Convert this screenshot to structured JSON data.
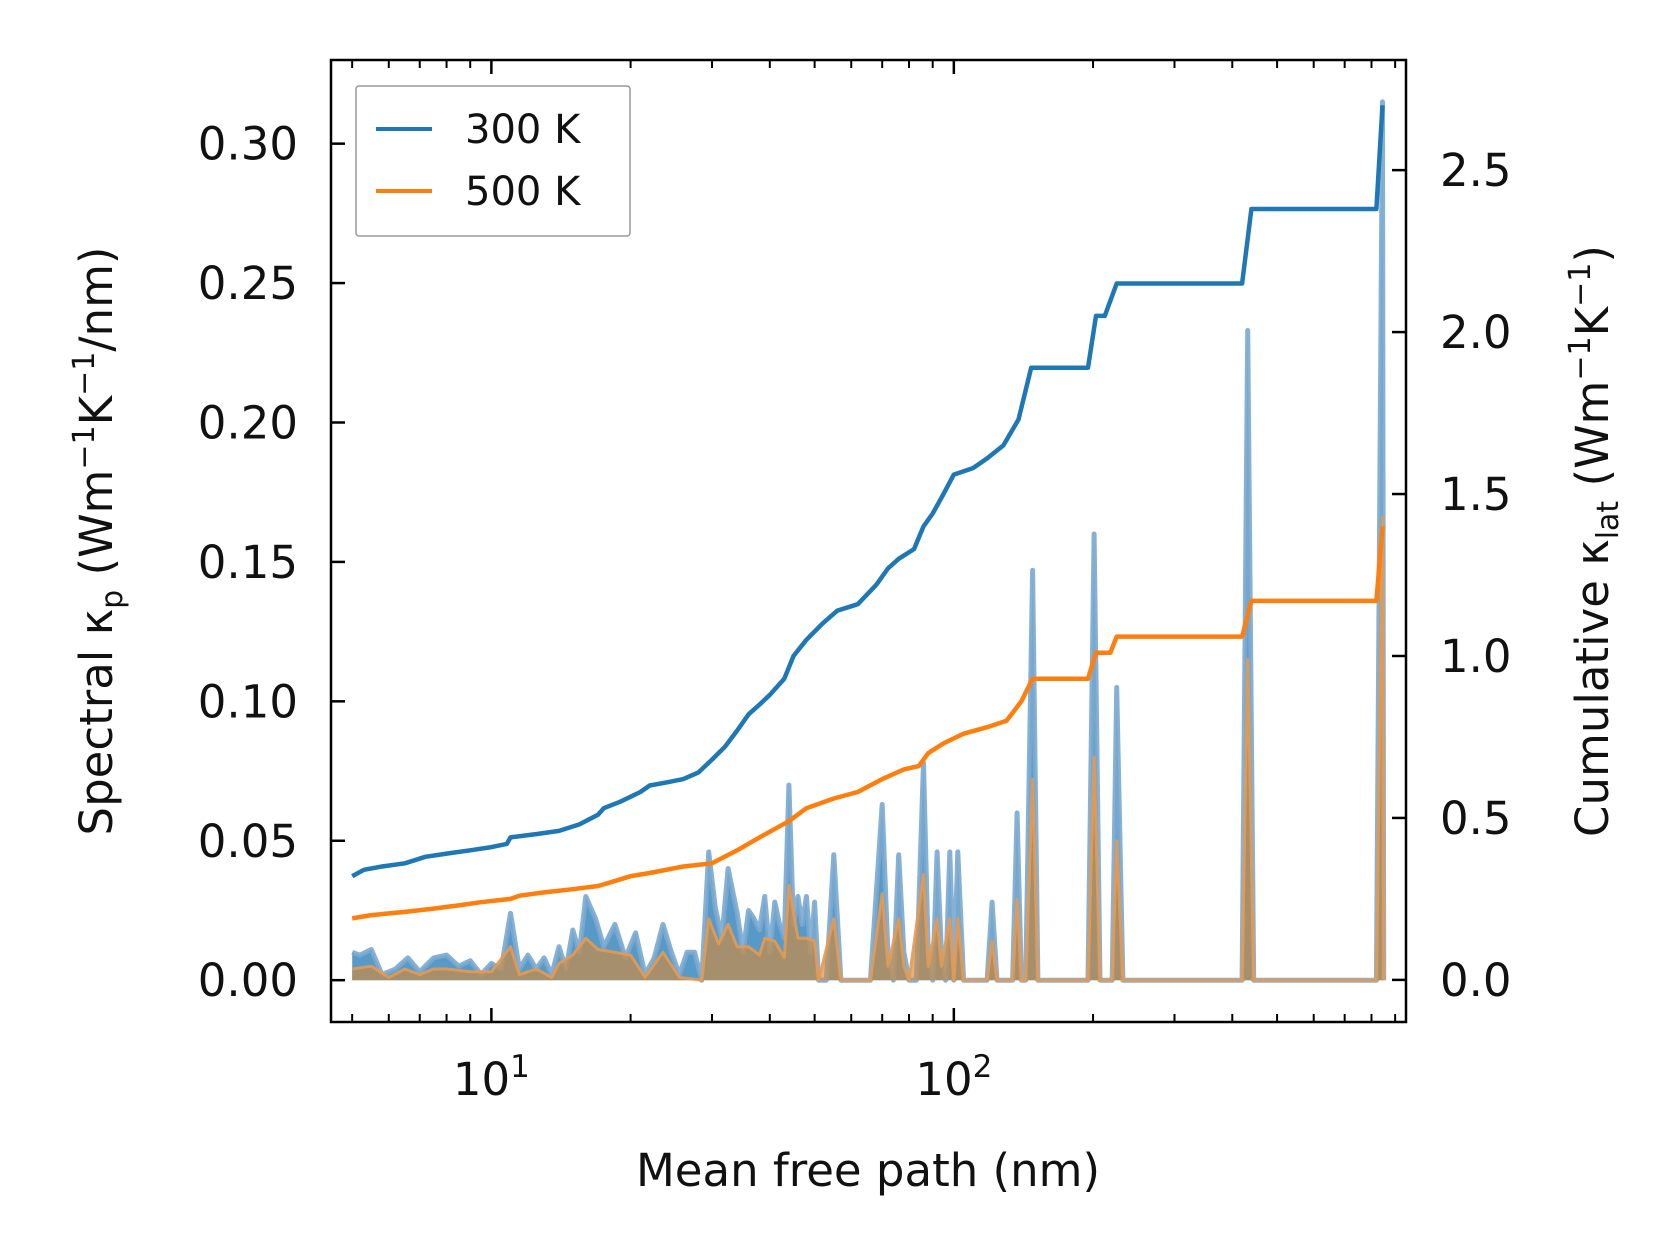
{
  "chart_data": {
    "type": "line",
    "xscale": "log",
    "xlabel": "Mean free path (nm)",
    "ylabel_left": {
      "main": "Spectral ",
      "kappa": "κ",
      "sub": "p",
      "unit_prefix": " (Wm",
      "exp1": "−1",
      "mid": "K",
      "exp2": "−1",
      "unit_suffix": "/nm)"
    },
    "ylabel_right": {
      "main": "Cumulative ",
      "kappa": "κ",
      "sub": "lat",
      "unit_prefix": " (Wm",
      "exp1": "−1",
      "mid": "K",
      "exp2": "−1",
      "unit_suffix": ")"
    },
    "xlim": [
      4.5,
      950
    ],
    "ylim_left": [
      -0.015,
      0.33
    ],
    "ylim_right": [
      -0.13,
      2.84
    ],
    "x_ticks": [
      {
        "value": 10,
        "base": "10",
        "exp": "1"
      },
      {
        "value": 100,
        "base": "10",
        "exp": "2"
      }
    ],
    "y_ticks_left": [
      "0.00",
      "0.05",
      "0.10",
      "0.15",
      "0.20",
      "0.25",
      "0.30"
    ],
    "y_ticks_right": [
      "0.0",
      "0.5",
      "1.0",
      "1.5",
      "2.0",
      "2.5"
    ],
    "legend": {
      "position": "top-left",
      "entries": [
        "300 K",
        "500 K"
      ]
    },
    "colors": {
      "300K": "#1f77b4",
      "500K": "#ff7f0e",
      "fill300": "#1f77b4",
      "fill500": "#d08a3e"
    },
    "series": [
      {
        "name": "300 K",
        "axis": "right",
        "kind": "cumulative",
        "points": [
          [
            5.0,
            0.32
          ],
          [
            5.3,
            0.34
          ],
          [
            5.8,
            0.35
          ],
          [
            6.5,
            0.36
          ],
          [
            7.2,
            0.38
          ],
          [
            8.0,
            0.39
          ],
          [
            9.0,
            0.4
          ],
          [
            10.0,
            0.41
          ],
          [
            10.8,
            0.42
          ],
          [
            11.0,
            0.44
          ],
          [
            12.5,
            0.45
          ],
          [
            14.0,
            0.46
          ],
          [
            15.5,
            0.48
          ],
          [
            17.0,
            0.51
          ],
          [
            17.5,
            0.53
          ],
          [
            19.0,
            0.55
          ],
          [
            21.0,
            0.58
          ],
          [
            22.0,
            0.6
          ],
          [
            24.0,
            0.61
          ],
          [
            26.0,
            0.62
          ],
          [
            28.0,
            0.64
          ],
          [
            30.0,
            0.68
          ],
          [
            32.0,
            0.72
          ],
          [
            34.0,
            0.77
          ],
          [
            36.0,
            0.82
          ],
          [
            38.0,
            0.85
          ],
          [
            40.0,
            0.88
          ],
          [
            43.0,
            0.93
          ],
          [
            45.0,
            1.0
          ],
          [
            48.0,
            1.05
          ],
          [
            52.0,
            1.1
          ],
          [
            56.0,
            1.14
          ],
          [
            62.0,
            1.16
          ],
          [
            68.0,
            1.22
          ],
          [
            72.0,
            1.27
          ],
          [
            76.0,
            1.3
          ],
          [
            82.0,
            1.33
          ],
          [
            86.0,
            1.4
          ],
          [
            90.0,
            1.44
          ],
          [
            95.0,
            1.5
          ],
          [
            100.0,
            1.56
          ],
          [
            110.0,
            1.58
          ],
          [
            118.0,
            1.61
          ],
          [
            128.0,
            1.65
          ],
          [
            138.0,
            1.73
          ],
          [
            147.0,
            1.89
          ],
          [
            150.0,
            1.89
          ],
          [
            195.0,
            1.89
          ],
          [
            203.0,
            2.05
          ],
          [
            212.0,
            2.05
          ],
          [
            225.0,
            2.15
          ],
          [
            420.0,
            2.15
          ],
          [
            440.0,
            2.38
          ],
          [
            820.0,
            2.38
          ],
          [
            845.0,
            2.7
          ]
        ]
      },
      {
        "name": "500 K",
        "axis": "right",
        "kind": "cumulative",
        "points": [
          [
            5.0,
            0.19
          ],
          [
            5.5,
            0.2
          ],
          [
            6.5,
            0.21
          ],
          [
            7.5,
            0.22
          ],
          [
            8.5,
            0.23
          ],
          [
            9.5,
            0.24
          ],
          [
            11.0,
            0.25
          ],
          [
            11.5,
            0.26
          ],
          [
            13.0,
            0.27
          ],
          [
            15.0,
            0.28
          ],
          [
            17.0,
            0.29
          ],
          [
            18.0,
            0.3
          ],
          [
            20.0,
            0.32
          ],
          [
            22.0,
            0.33
          ],
          [
            26.0,
            0.35
          ],
          [
            30.0,
            0.36
          ],
          [
            34.0,
            0.4
          ],
          [
            38.0,
            0.44
          ],
          [
            44.0,
            0.49
          ],
          [
            48.0,
            0.53
          ],
          [
            55.0,
            0.56
          ],
          [
            62.0,
            0.58
          ],
          [
            70.0,
            0.62
          ],
          [
            78.0,
            0.65
          ],
          [
            84.0,
            0.66
          ],
          [
            88.0,
            0.7
          ],
          [
            95.0,
            0.73
          ],
          [
            105.0,
            0.76
          ],
          [
            118.0,
            0.78
          ],
          [
            130.0,
            0.8
          ],
          [
            140.0,
            0.86
          ],
          [
            148.0,
            0.93
          ],
          [
            195.0,
            0.93
          ],
          [
            203.0,
            1.01
          ],
          [
            218.0,
            1.01
          ],
          [
            225.0,
            1.06
          ],
          [
            420.0,
            1.06
          ],
          [
            440.0,
            1.17
          ],
          [
            820.0,
            1.17
          ],
          [
            845.0,
            1.4
          ]
        ]
      },
      {
        "name": "300 K",
        "axis": "left",
        "kind": "spectral",
        "points": [
          [
            5.0,
            0.01
          ],
          [
            5.2,
            0.009
          ],
          [
            5.5,
            0.011
          ],
          [
            5.8,
            0.002
          ],
          [
            6.2,
            0.004
          ],
          [
            6.6,
            0.008
          ],
          [
            7.0,
            0.003
          ],
          [
            7.5,
            0.008
          ],
          [
            8.0,
            0.009
          ],
          [
            8.5,
            0.005
          ],
          [
            9.0,
            0.007
          ],
          [
            9.5,
            0.002
          ],
          [
            10.0,
            0.006
          ],
          [
            10.5,
            0.004
          ],
          [
            11.0,
            0.024
          ],
          [
            11.5,
            0.004
          ],
          [
            12.0,
            0.009
          ],
          [
            12.5,
            0.004
          ],
          [
            13.0,
            0.008
          ],
          [
            13.5,
            0.002
          ],
          [
            14.0,
            0.012
          ],
          [
            14.5,
            0.004
          ],
          [
            15.0,
            0.018
          ],
          [
            15.5,
            0.01
          ],
          [
            16.0,
            0.03
          ],
          [
            16.8,
            0.022
          ],
          [
            17.5,
            0.012
          ],
          [
            18.5,
            0.02
          ],
          [
            19.5,
            0.008
          ],
          [
            20.5,
            0.017
          ],
          [
            21.5,
            0.002
          ],
          [
            22.5,
            0.008
          ],
          [
            23.5,
            0.02
          ],
          [
            24.5,
            0.01
          ],
          [
            25.5,
            0.002
          ],
          [
            26.5,
            0.01
          ],
          [
            27.5,
            0.01
          ],
          [
            28.5,
            0.0
          ],
          [
            29.5,
            0.046
          ],
          [
            30.5,
            0.026
          ],
          [
            31.5,
            0.015
          ],
          [
            32.5,
            0.04
          ],
          [
            34.0,
            0.024
          ],
          [
            35.0,
            0.01
          ],
          [
            36.0,
            0.025
          ],
          [
            37.0,
            0.022
          ],
          [
            38.0,
            0.018
          ],
          [
            39.0,
            0.03
          ],
          [
            40.0,
            0.01
          ],
          [
            41.0,
            0.028
          ],
          [
            42.0,
            0.02
          ],
          [
            43.0,
            0.015
          ],
          [
            44.0,
            0.07
          ],
          [
            45.0,
            0.02
          ],
          [
            46.0,
            0.03
          ],
          [
            47.0,
            0.02
          ],
          [
            48.0,
            0.03
          ],
          [
            49.0,
            0.01
          ],
          [
            50.0,
            0.028
          ],
          [
            51.0,
            0.0
          ],
          [
            53.0,
            0.0
          ],
          [
            55.0,
            0.045
          ],
          [
            57.0,
            0.0
          ],
          [
            60.0,
            0.0
          ],
          [
            63.0,
            0.0
          ],
          [
            66.0,
            0.0
          ],
          [
            70.0,
            0.063
          ],
          [
            72.0,
            0.01
          ],
          [
            74.0,
            0.0
          ],
          [
            76.0,
            0.045
          ],
          [
            78.0,
            0.01
          ],
          [
            80.0,
            0.0
          ],
          [
            83.0,
            0.0
          ],
          [
            86.0,
            0.078
          ],
          [
            88.0,
            0.01
          ],
          [
            90.0,
            0.0
          ],
          [
            92.0,
            0.046
          ],
          [
            94.0,
            0.01
          ],
          [
            96.0,
            0.0
          ],
          [
            98.0,
            0.046
          ],
          [
            100.0,
            0.0
          ],
          [
            102.0,
            0.046
          ],
          [
            105.0,
            0.0
          ],
          [
            118.0,
            0.0
          ],
          [
            121.0,
            0.028
          ],
          [
            124.0,
            0.0
          ],
          [
            134.0,
            0.0
          ],
          [
            137.0,
            0.06
          ],
          [
            140.0,
            0.0
          ],
          [
            143.0,
            0.0
          ],
          [
            148.0,
            0.147
          ],
          [
            152.0,
            0.0
          ],
          [
            195.0,
            0.0
          ],
          [
            201.0,
            0.16
          ],
          [
            207.0,
            0.0
          ],
          [
            220.0,
            0.0
          ],
          [
            225.0,
            0.105
          ],
          [
            232.0,
            0.0
          ],
          [
            420.0,
            0.0
          ],
          [
            432.0,
            0.233
          ],
          [
            445.0,
            0.0
          ],
          [
            820.0,
            0.0
          ],
          [
            845.0,
            0.315
          ],
          [
            850.0,
            0.0
          ]
        ]
      },
      {
        "name": "500 K",
        "axis": "left",
        "kind": "spectral",
        "points": [
          [
            5.0,
            0.004
          ],
          [
            5.5,
            0.005
          ],
          [
            6.0,
            0.001
          ],
          [
            6.5,
            0.004
          ],
          [
            7.0,
            0.002
          ],
          [
            7.5,
            0.004
          ],
          [
            8.0,
            0.004
          ],
          [
            9.0,
            0.003
          ],
          [
            10.0,
            0.003
          ],
          [
            11.0,
            0.012
          ],
          [
            11.5,
            0.002
          ],
          [
            12.5,
            0.004
          ],
          [
            13.5,
            0.001
          ],
          [
            14.0,
            0.006
          ],
          [
            15.0,
            0.009
          ],
          [
            16.0,
            0.015
          ],
          [
            17.0,
            0.011
          ],
          [
            18.5,
            0.01
          ],
          [
            20.0,
            0.009
          ],
          [
            21.5,
            0.001
          ],
          [
            23.5,
            0.01
          ],
          [
            25.5,
            0.001
          ],
          [
            28.5,
            0.0
          ],
          [
            29.5,
            0.022
          ],
          [
            31.0,
            0.013
          ],
          [
            32.5,
            0.02
          ],
          [
            34.0,
            0.012
          ],
          [
            36.0,
            0.012
          ],
          [
            38.0,
            0.009
          ],
          [
            39.0,
            0.015
          ],
          [
            41.0,
            0.014
          ],
          [
            43.0,
            0.008
          ],
          [
            44.0,
            0.034
          ],
          [
            46.0,
            0.015
          ],
          [
            48.0,
            0.015
          ],
          [
            50.0,
            0.014
          ],
          [
            51.0,
            0.0
          ],
          [
            55.0,
            0.022
          ],
          [
            57.0,
            0.0
          ],
          [
            66.0,
            0.0
          ],
          [
            70.0,
            0.031
          ],
          [
            72.0,
            0.005
          ],
          [
            76.0,
            0.022
          ],
          [
            78.0,
            0.005
          ],
          [
            80.0,
            0.0
          ],
          [
            86.0,
            0.038
          ],
          [
            88.0,
            0.005
          ],
          [
            92.0,
            0.022
          ],
          [
            94.0,
            0.005
          ],
          [
            98.0,
            0.022
          ],
          [
            100.0,
            0.0
          ],
          [
            102.0,
            0.022
          ],
          [
            105.0,
            0.0
          ],
          [
            118.0,
            0.0
          ],
          [
            121.0,
            0.014
          ],
          [
            124.0,
            0.0
          ],
          [
            134.0,
            0.0
          ],
          [
            137.0,
            0.029
          ],
          [
            140.0,
            0.0
          ],
          [
            143.0,
            0.0
          ],
          [
            148.0,
            0.072
          ],
          [
            152.0,
            0.0
          ],
          [
            195.0,
            0.0
          ],
          [
            201.0,
            0.08
          ],
          [
            207.0,
            0.0
          ],
          [
            220.0,
            0.0
          ],
          [
            225.0,
            0.05
          ],
          [
            232.0,
            0.0
          ],
          [
            420.0,
            0.0
          ],
          [
            432.0,
            0.115
          ],
          [
            445.0,
            0.0
          ],
          [
            820.0,
            0.0
          ],
          [
            845.0,
            0.166
          ],
          [
            850.0,
            0.0
          ]
        ]
      }
    ]
  }
}
